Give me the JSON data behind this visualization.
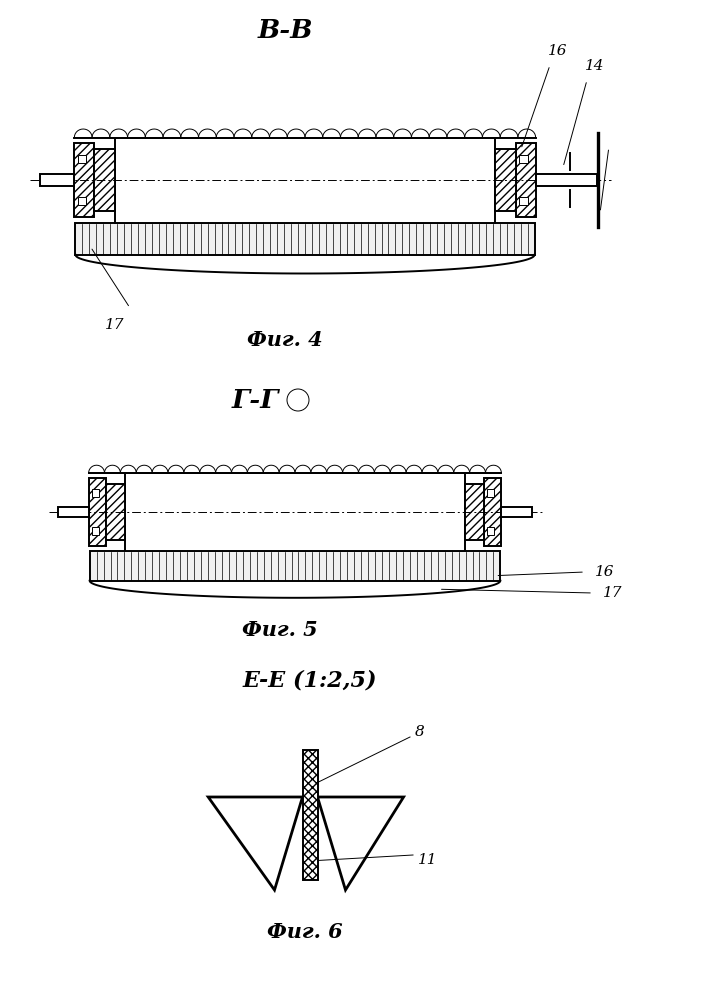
{
  "bg_color": "#ffffff",
  "line_color": "#000000",
  "fig4_title": "В-В",
  "fig4_caption": "Фиг. 4",
  "fig5_title": "Г-Г",
  "fig5_caption": "Фиг. 5",
  "fig6_title": "Е-Е (1:2,5)",
  "fig6_caption": "Фиг. 6",
  "label_16_fig4": "16",
  "label_14_fig4": "14",
  "label_17_fig4": "17",
  "label_16_fig5": "16",
  "label_17_fig5": "17",
  "label_8_fig6": "8",
  "label_11_fig6": "11"
}
